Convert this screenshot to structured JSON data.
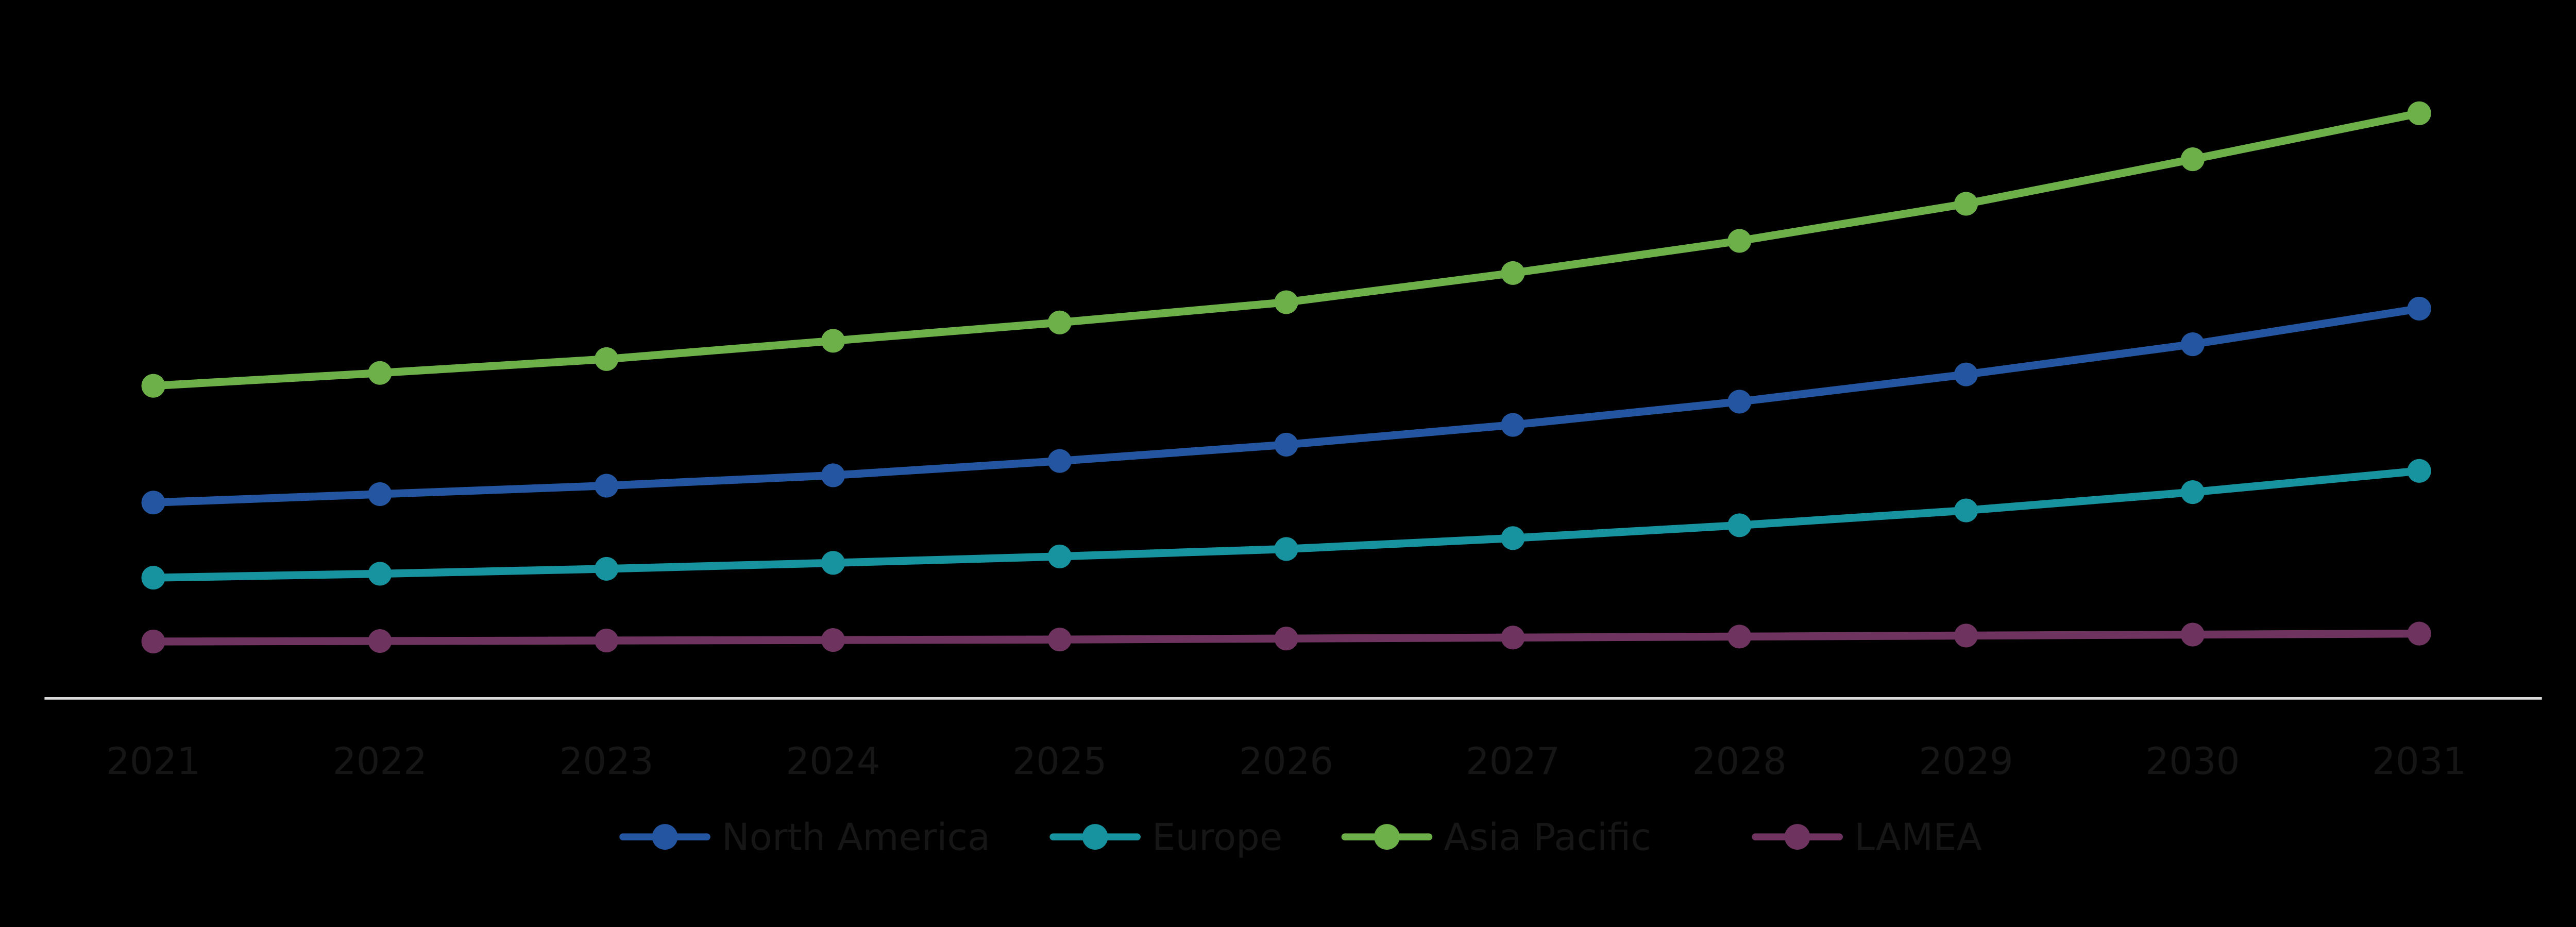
{
  "page": {
    "background_color": "#000000",
    "title": ""
  },
  "chart_data": {
    "type": "line",
    "title": "",
    "xlabel": "",
    "ylabel": "",
    "x_tick_labels": [
      "2021",
      "2022",
      "2023",
      "2024",
      "2025",
      "2026",
      "2027",
      "2028",
      "2029",
      "2030",
      "2031"
    ],
    "y_axis_visible": false,
    "value_units": "relative (no y-axis labels shown in image; values are pixel heights above baseline)",
    "ylim": [
      0,
      1350
    ],
    "grid": false,
    "background_color": "#000000",
    "baseline_color": "#D9D9D9",
    "tick_label_color": "#161616",
    "legend_label_color": "#161616",
    "legend_position": "bottom-center",
    "marker_style": "circle",
    "series": [
      {
        "name": "North America",
        "color": "#2355A0",
        "values": [
          396,
          413,
          430,
          451,
          480,
          513,
          553,
          600,
          655,
          716,
          788
        ]
      },
      {
        "name": "Europe",
        "color": "#16939E",
        "values": [
          244,
          252,
          262,
          274,
          287,
          302,
          324,
          350,
          380,
          417,
          460
        ]
      },
      {
        "name": "Asia Pacific",
        "color": "#6DB04A",
        "values": [
          632,
          658,
          686,
          723,
          760,
          801,
          860,
          925,
          1000,
          1090,
          1183
        ]
      },
      {
        "name": "LAMEA",
        "color": "#6F3360",
        "values": [
          115,
          116,
          117,
          118,
          119,
          121,
          123,
          125,
          127,
          129,
          131
        ]
      }
    ]
  }
}
